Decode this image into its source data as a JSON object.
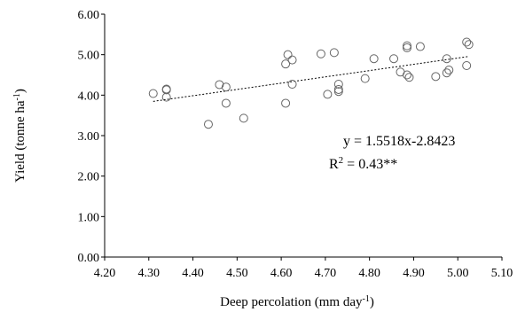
{
  "chart_data": {
    "type": "scatter",
    "xlabel": "Deep percolation (mm day",
    "xlabel_sup": "-1",
    "xlabel_end": ")",
    "ylabel": "Yield (tonne ha",
    "ylabel_sup": "-1",
    "ylabel_end": ")",
    "xlim": [
      4.2,
      5.1
    ],
    "ylim": [
      0,
      6
    ],
    "x_ticks": [
      "4.20",
      "4.30",
      "4.40",
      "4.50",
      "4.60",
      "4.70",
      "4.80",
      "4.90",
      "5.00",
      "5.10"
    ],
    "y_ticks": [
      "0.00",
      "1.00",
      "2.00",
      "3.00",
      "4.00",
      "5.00",
      "6.00"
    ],
    "grid": false,
    "points": [
      {
        "x": 4.31,
        "y": 4.04
      },
      {
        "x": 4.34,
        "y": 4.15
      },
      {
        "x": 4.34,
        "y": 4.13
      },
      {
        "x": 4.34,
        "y": 3.95
      },
      {
        "x": 4.435,
        "y": 3.28
      },
      {
        "x": 4.46,
        "y": 4.26
      },
      {
        "x": 4.475,
        "y": 4.2
      },
      {
        "x": 4.475,
        "y": 3.8
      },
      {
        "x": 4.515,
        "y": 3.43
      },
      {
        "x": 4.61,
        "y": 4.77
      },
      {
        "x": 4.615,
        "y": 5.0
      },
      {
        "x": 4.625,
        "y": 4.87
      },
      {
        "x": 4.625,
        "y": 4.27
      },
      {
        "x": 4.61,
        "y": 3.8
      },
      {
        "x": 4.69,
        "y": 5.02
      },
      {
        "x": 4.72,
        "y": 5.05
      },
      {
        "x": 4.705,
        "y": 4.02
      },
      {
        "x": 4.73,
        "y": 4.27
      },
      {
        "x": 4.73,
        "y": 4.14
      },
      {
        "x": 4.73,
        "y": 4.09
      },
      {
        "x": 4.79,
        "y": 4.41
      },
      {
        "x": 4.81,
        "y": 4.9
      },
      {
        "x": 4.855,
        "y": 4.9
      },
      {
        "x": 4.87,
        "y": 4.57
      },
      {
        "x": 4.885,
        "y": 5.22
      },
      {
        "x": 4.885,
        "y": 5.17
      },
      {
        "x": 4.885,
        "y": 4.5
      },
      {
        "x": 4.89,
        "y": 4.44
      },
      {
        "x": 4.915,
        "y": 5.2
      },
      {
        "x": 4.95,
        "y": 4.46
      },
      {
        "x": 4.975,
        "y": 4.9
      },
      {
        "x": 4.975,
        "y": 4.55
      },
      {
        "x": 4.98,
        "y": 4.62
      },
      {
        "x": 5.02,
        "y": 5.31
      },
      {
        "x": 5.025,
        "y": 5.25
      },
      {
        "x": 5.02,
        "y": 4.73
      }
    ],
    "trendline": {
      "slope": 1.5518,
      "intercept": -2.8423,
      "x_range": [
        4.31,
        5.025
      ]
    },
    "annotations": {
      "equation": "y = 1.5518x-2.8423",
      "r2_label": "R",
      "r2_sup": "2",
      "r2_value": " = 0.43**"
    }
  }
}
